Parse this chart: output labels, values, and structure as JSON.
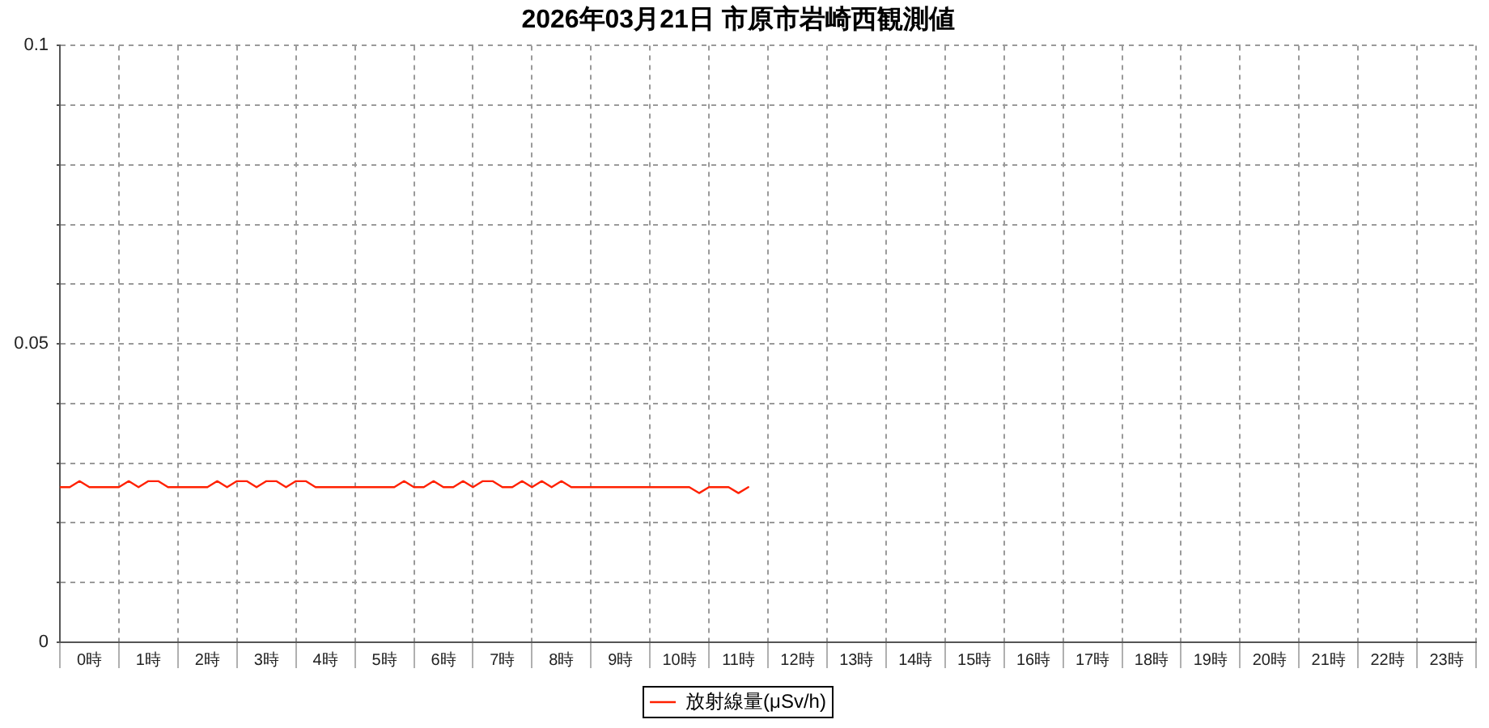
{
  "chart_data": {
    "type": "line",
    "title": "2026年03月21日 市原市岩崎西観測値",
    "x": [
      0,
      0.167,
      0.333,
      0.5,
      0.667,
      0.833,
      1,
      1.167,
      1.333,
      1.5,
      1.667,
      1.833,
      2,
      2.167,
      2.333,
      2.5,
      2.667,
      2.833,
      3,
      3.167,
      3.333,
      3.5,
      3.667,
      3.833,
      4,
      4.167,
      4.333,
      4.5,
      4.667,
      4.833,
      5,
      5.167,
      5.333,
      5.5,
      5.667,
      5.833,
      6,
      6.167,
      6.333,
      6.5,
      6.667,
      6.833,
      7,
      7.167,
      7.333,
      7.5,
      7.667,
      7.833,
      8,
      8.167,
      8.333,
      8.5,
      8.667,
      8.833,
      9,
      9.167,
      9.333,
      9.5,
      9.667,
      9.833,
      10,
      10.167,
      10.333,
      10.5,
      10.667,
      10.833,
      11,
      11.167,
      11.333,
      11.5,
      11.667
    ],
    "series": [
      {
        "name": "放射線量(μSv/h)",
        "color": "#ff2000",
        "values": [
          0.026,
          0.026,
          0.027,
          0.026,
          0.026,
          0.026,
          0.026,
          0.027,
          0.026,
          0.027,
          0.027,
          0.026,
          0.026,
          0.026,
          0.026,
          0.026,
          0.027,
          0.026,
          0.027,
          0.027,
          0.026,
          0.027,
          0.027,
          0.026,
          0.027,
          0.027,
          0.026,
          0.026,
          0.026,
          0.026,
          0.026,
          0.026,
          0.026,
          0.026,
          0.026,
          0.027,
          0.026,
          0.026,
          0.027,
          0.026,
          0.026,
          0.027,
          0.026,
          0.027,
          0.027,
          0.026,
          0.026,
          0.027,
          0.026,
          0.027,
          0.026,
          0.027,
          0.026,
          0.026,
          0.026,
          0.026,
          0.026,
          0.026,
          0.026,
          0.026,
          0.026,
          0.026,
          0.026,
          0.026,
          0.026,
          0.025,
          0.026,
          0.026,
          0.026,
          0.025,
          0.026
        ]
      }
    ],
    "xlim": [
      0,
      24
    ],
    "xticks": [
      {
        "value": 0,
        "label": null
      },
      {
        "value": 0.5,
        "label": "0時"
      },
      {
        "value": 1,
        "label": null
      },
      {
        "value": 1.5,
        "label": "1時"
      },
      {
        "value": 2,
        "label": null
      },
      {
        "value": 2.5,
        "label": "2時"
      },
      {
        "value": 3,
        "label": null
      },
      {
        "value": 3.5,
        "label": "3時"
      },
      {
        "value": 4,
        "label": null
      },
      {
        "value": 4.5,
        "label": "4時"
      },
      {
        "value": 5,
        "label": null
      },
      {
        "value": 5.5,
        "label": "5時"
      },
      {
        "value": 6,
        "label": null
      },
      {
        "value": 6.5,
        "label": "6時"
      },
      {
        "value": 7,
        "label": null
      },
      {
        "value": 7.5,
        "label": "7時"
      },
      {
        "value": 8,
        "label": null
      },
      {
        "value": 8.5,
        "label": "8時"
      },
      {
        "value": 9,
        "label": null
      },
      {
        "value": 9.5,
        "label": "9時"
      },
      {
        "value": 10,
        "label": null
      },
      {
        "value": 10.5,
        "label": "10時"
      },
      {
        "value": 11,
        "label": null
      },
      {
        "value": 11.5,
        "label": "11時"
      },
      {
        "value": 12,
        "label": null
      },
      {
        "value": 12.5,
        "label": "12時"
      },
      {
        "value": 13,
        "label": null
      },
      {
        "value": 13.5,
        "label": "13時"
      },
      {
        "value": 14,
        "label": null
      },
      {
        "value": 14.5,
        "label": "14時"
      },
      {
        "value": 15,
        "label": null
      },
      {
        "value": 15.5,
        "label": "15時"
      },
      {
        "value": 16,
        "label": null
      },
      {
        "value": 16.5,
        "label": "16時"
      },
      {
        "value": 17,
        "label": null
      },
      {
        "value": 17.5,
        "label": "17時"
      },
      {
        "value": 18,
        "label": null
      },
      {
        "value": 18.5,
        "label": "18時"
      },
      {
        "value": 19,
        "label": null
      },
      {
        "value": 19.5,
        "label": "19時"
      },
      {
        "value": 20,
        "label": null
      },
      {
        "value": 20.5,
        "label": "20時"
      },
      {
        "value": 21,
        "label": null
      },
      {
        "value": 21.5,
        "label": "21時"
      },
      {
        "value": 22,
        "label": null
      },
      {
        "value": 22.5,
        "label": "22時"
      },
      {
        "value": 23,
        "label": null
      },
      {
        "value": 23.5,
        "label": "23時"
      },
      {
        "value": 24,
        "label": null
      }
    ],
    "ylim": [
      0,
      0.1
    ],
    "yticks": [
      0,
      {
        "value": 0.01,
        "label": null
      },
      {
        "value": 0.02,
        "label": null
      },
      {
        "value": 0.03,
        "label": null
      },
      {
        "value": 0.04,
        "label": null
      },
      0.05,
      {
        "value": 0.06,
        "label": null
      },
      {
        "value": 0.07,
        "label": null
      },
      {
        "value": 0.08,
        "label": null
      },
      {
        "value": 0.09,
        "label": null
      },
      0.1
    ],
    "grid": true,
    "legend": "bottom",
    "marker": "none",
    "line_style": "solid"
  }
}
